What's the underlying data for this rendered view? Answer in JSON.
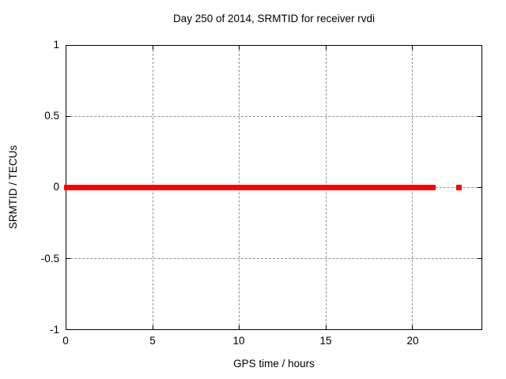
{
  "chart": {
    "title": "Day 250 of 2014, SRMTID for receiver rvdi",
    "xlabel": "GPS time / hours",
    "ylabel": "SRMTID / TECUs"
  },
  "axes": {
    "x_ticks": [
      "0",
      "5",
      "10",
      "15",
      "20"
    ],
    "y_ticks": [
      "1",
      "0.5",
      "0",
      "-0.5",
      "-1"
    ]
  },
  "colors": {
    "series_red": "#ff0000",
    "grid": "#909090",
    "axis": "#000000",
    "background": "#ffffff",
    "text": "#000000"
  },
  "chart_data": {
    "type": "scatter",
    "title": "Day 250 of 2014, SRMTID for receiver rvdi",
    "xlabel": "GPS time / hours",
    "ylabel": "SRMTID / TECUs",
    "xlim": [
      0,
      24
    ],
    "ylim": [
      -1,
      1
    ],
    "x_ticks": [
      0,
      5,
      10,
      15,
      20
    ],
    "y_ticks": [
      -1,
      -0.5,
      0,
      0.5,
      1
    ],
    "grid": true,
    "legend": "none",
    "series": [
      {
        "name": "SRMTID",
        "color": "#ff0000",
        "marker": "filled-square",
        "marker_size": 7,
        "segments": [
          {
            "x_start": 0,
            "x_end": 21.2,
            "y": 0
          }
        ],
        "isolated_points": [
          {
            "x": 22.7,
            "y": 0
          }
        ]
      }
    ]
  }
}
